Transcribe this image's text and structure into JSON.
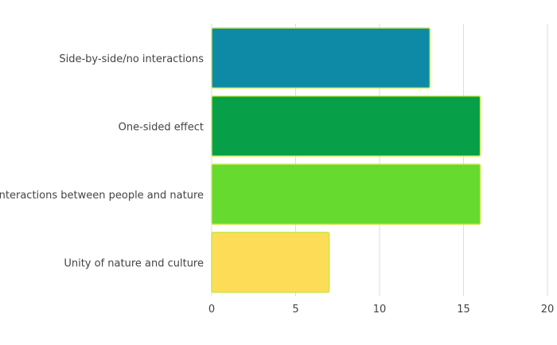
{
  "chart_data": {
    "type": "bar",
    "orientation": "horizontal",
    "categories": [
      "Side-by-side/no interactions",
      "One-sided effect",
      "Interactions between people and nature",
      "Unity of nature and culture"
    ],
    "values": [
      13,
      16,
      16,
      7
    ],
    "bar_colors": [
      "#0f8aa6",
      "#079f48",
      "#66da2e",
      "#fddc57"
    ],
    "bar_border_color": "#c6e84a",
    "title": "",
    "xlabel": "",
    "ylabel": "",
    "xlim": [
      0,
      20
    ],
    "x_ticks": [
      0,
      5,
      10,
      15,
      20
    ],
    "grid": true,
    "grid_color": "#dddddd",
    "legend": "none"
  }
}
